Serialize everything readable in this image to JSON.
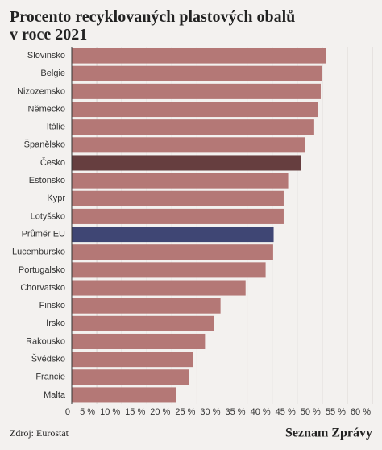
{
  "chart_data": {
    "type": "barh",
    "title": "Procento recyklovaných plastových obalů v roce 2021",
    "categories": [
      "Slovinsko",
      "Belgie",
      "Nizozemsko",
      "Německo",
      "Itálie",
      "Španělsko",
      "Česko",
      "Estonsko",
      "Kypr",
      "Lotyšsko",
      "Průměr EU",
      "Lucembursko",
      "Portugalsko",
      "Chorvatsko",
      "Finsko",
      "Irsko",
      "Rakousko",
      "Švédsko",
      "Francie",
      "Malta"
    ],
    "values": [
      50.8,
      50,
      49.7,
      49.2,
      48.4,
      46.5,
      45.8,
      43.2,
      42.3,
      42.3,
      40.3,
      40.2,
      38.7,
      34.7,
      29.7,
      28.4,
      26.6,
      24.2,
      23.4,
      20.8
    ],
    "colors": [
      "#b47876",
      "#b47876",
      "#b47876",
      "#b47876",
      "#b47876",
      "#b47876",
      "#663e3f",
      "#b47876",
      "#b47876",
      "#b47876",
      "#3f4674",
      "#b47876",
      "#b47876",
      "#b47876",
      "#b47876",
      "#b47876",
      "#b47876",
      "#b47876",
      "#b47876",
      "#b47876"
    ],
    "xlim": [
      0,
      60
    ],
    "xticks": [
      0,
      {
        "value": 5,
        "label": "5 %"
      },
      {
        "value": 10,
        "label": "10 %"
      },
      {
        "value": 15,
        "label": "15 %"
      },
      {
        "value": 20,
        "label": "20 %"
      },
      {
        "value": 25,
        "label": "25 %"
      },
      {
        "value": 30,
        "label": "30 %"
      },
      {
        "value": 35,
        "label": "35 %"
      },
      {
        "value": 40,
        "label": "40 %"
      },
      {
        "value": 45,
        "label": "45 %"
      },
      {
        "value": 50,
        "label": "50 %"
      },
      {
        "value": 55,
        "label": "55 %"
      },
      {
        "value": 60,
        "label": "60 %"
      }
    ],
    "grid": true,
    "source": "Zdroj: Eurostat",
    "brand": "Seznam Zprávy"
  }
}
